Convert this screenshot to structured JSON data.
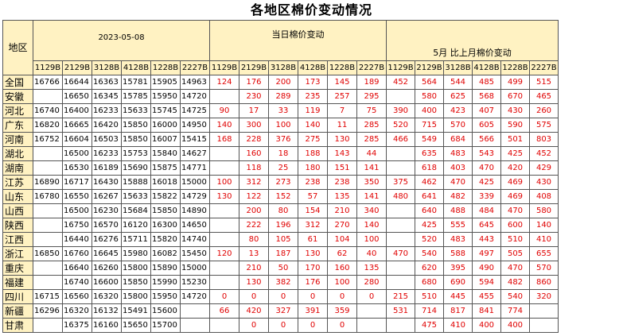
{
  "title": "各地区棉价变动情况",
  "header": {
    "region_label": "地区",
    "date_label": "2023-05-08",
    "daily_label": "当日棉价变动",
    "monthly_label": "5月 比上月棉价变动",
    "codes": [
      "1129B",
      "2129B",
      "3128B",
      "4128B",
      "1228B",
      "2227B"
    ]
  },
  "colors": {
    "header_fill": "#fff2c2",
    "change_text": "#e00000",
    "price_text": "#000000"
  },
  "rows": [
    {
      "region": "全国",
      "prices": [
        "16766",
        "16644",
        "16363",
        "15781",
        "15905",
        "14963"
      ],
      "daily": [
        "124",
        "176",
        "200",
        "173",
        "145",
        "189"
      ],
      "monthly": [
        "452",
        "564",
        "544",
        "485",
        "499",
        "515"
      ]
    },
    {
      "region": "安徽",
      "prices": [
        "",
        "16650",
        "16345",
        "15785",
        "15950",
        "14720"
      ],
      "daily": [
        "",
        "230",
        "289",
        "235",
        "257",
        "295"
      ],
      "monthly": [
        "",
        "580",
        "625",
        "568",
        "670",
        "465"
      ]
    },
    {
      "region": "河北",
      "prices": [
        "16740",
        "16400",
        "16233",
        "15633",
        "15745",
        "14725"
      ],
      "daily": [
        "90",
        "17",
        "33",
        "119",
        "7",
        "75"
      ],
      "monthly": [
        "390",
        "400",
        "423",
        "407",
        "430",
        "260"
      ]
    },
    {
      "region": "广东",
      "prices": [
        "16820",
        "16665",
        "16420",
        "15850",
        "16000",
        "14950"
      ],
      "daily": [
        "140",
        "300",
        "100",
        "140",
        "11",
        "285"
      ],
      "monthly": [
        "520",
        "715",
        "570",
        "605",
        "590",
        "575"
      ]
    },
    {
      "region": "河南",
      "prices": [
        "16752",
        "16604",
        "16503",
        "15850",
        "16007",
        "15415"
      ],
      "daily": [
        "168",
        "228",
        "376",
        "275",
        "130",
        "285"
      ],
      "monthly": [
        "466",
        "549",
        "684",
        "566",
        "501",
        "803"
      ]
    },
    {
      "region": "湖北",
      "prices": [
        "",
        "16500",
        "16233",
        "15753",
        "15840",
        "14627"
      ],
      "daily": [
        "",
        "160",
        "18",
        "188",
        "143",
        "44"
      ],
      "monthly": [
        "",
        "635",
        "483",
        "543",
        "425",
        "452"
      ]
    },
    {
      "region": "湖南",
      "prices": [
        "",
        "16530",
        "16189",
        "15690",
        "15875",
        "14771"
      ],
      "daily": [
        "",
        "118",
        "25",
        "180",
        "151",
        "141"
      ],
      "monthly": [
        "",
        "618",
        "403",
        "470",
        "420",
        "429"
      ]
    },
    {
      "region": "江苏",
      "prices": [
        "16890",
        "16717",
        "16430",
        "15888",
        "16018",
        "15000"
      ],
      "daily": [
        "100",
        "312",
        "273",
        "238",
        "238",
        "350"
      ],
      "monthly": [
        "375",
        "462",
        "470",
        "425",
        "469",
        "430"
      ]
    },
    {
      "region": "山东",
      "prices": [
        "16780",
        "16550",
        "16267",
        "15633",
        "15822",
        "14729"
      ],
      "daily": [
        "130",
        "122",
        "152",
        "57",
        "135",
        "141"
      ],
      "monthly": [
        "480",
        "641",
        "482",
        "339",
        "469",
        "408"
      ]
    },
    {
      "region": "山西",
      "prices": [
        "",
        "16500",
        "16230",
        "15684",
        "15850",
        "14890"
      ],
      "daily": [
        "",
        "200",
        "80",
        "154",
        "210",
        "340"
      ],
      "monthly": [
        "",
        "640",
        "488",
        "484",
        "470",
        "580"
      ]
    },
    {
      "region": "陕西",
      "prices": [
        "",
        "16750",
        "16570",
        "16120",
        "16300",
        "14650"
      ],
      "daily": [
        "",
        "222",
        "196",
        "312",
        "270",
        "140"
      ],
      "monthly": [
        "",
        "425",
        "555",
        "645",
        "600",
        "140"
      ]
    },
    {
      "region": "江西",
      "prices": [
        "",
        "16440",
        "16276",
        "15711",
        "15820",
        "14740"
      ],
      "daily": [
        "",
        "80",
        "105",
        "61",
        "104",
        "100"
      ],
      "monthly": [
        "",
        "520",
        "483",
        "443",
        "510",
        "410"
      ]
    },
    {
      "region": "浙江",
      "prices": [
        "16850",
        "16760",
        "16645",
        "15980",
        "16082",
        "15450"
      ],
      "daily": [
        "120",
        "13",
        "187",
        "130",
        "62",
        "40"
      ],
      "monthly": [
        "470",
        "540",
        "588",
        "497",
        "505",
        "655"
      ]
    },
    {
      "region": "重庆",
      "prices": [
        "",
        "16640",
        "16260",
        "15800",
        "15890",
        "15000"
      ],
      "daily": [
        "",
        "210",
        "50",
        "170",
        "160",
        "135"
      ],
      "monthly": [
        "",
        "620",
        "395",
        "490",
        "470",
        "570"
      ]
    },
    {
      "region": "福建",
      "prices": [
        "",
        "16740",
        "16600",
        "15850",
        "15990",
        "15230"
      ],
      "daily": [
        "",
        "130",
        "382",
        "176",
        "100",
        "280"
      ],
      "monthly": [
        "",
        "680",
        "690",
        "594",
        "482",
        "860"
      ]
    },
    {
      "region": "四川",
      "prices": [
        "16715",
        "16560",
        "16320",
        "15800",
        "15950",
        "14720"
      ],
      "daily": [
        "0",
        "0",
        "0",
        "0",
        "0",
        "0"
      ],
      "monthly": [
        "215",
        "510",
        "445",
        "455",
        "540",
        "320"
      ]
    },
    {
      "region": "新疆",
      "prices": [
        "16296",
        "16320",
        "16132",
        "15491",
        "15600",
        ""
      ],
      "daily": [
        "66",
        "420",
        "327",
        "391",
        "359",
        ""
      ],
      "monthly": [
        "531",
        "714",
        "817",
        "841",
        "774",
        ""
      ]
    },
    {
      "region": "甘肃",
      "prices": [
        "",
        "16375",
        "16160",
        "15650",
        "15700",
        ""
      ],
      "daily": [
        "",
        "0",
        "0",
        "0",
        "0",
        ""
      ],
      "monthly": [
        "",
        "475",
        "410",
        "400",
        "400",
        ""
      ]
    }
  ]
}
